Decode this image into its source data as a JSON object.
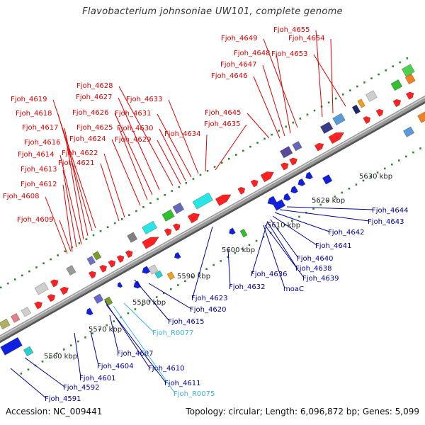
{
  "header": {
    "title": "Flavobacterium johnsoniae UW101, complete genome"
  },
  "footer": {
    "accession": "Accession: NC_009441",
    "summary": "Topology: circular; Length: 6,096,872 bp; Genes: 5,099"
  },
  "colors": {
    "plus_strand_label": "#e00000",
    "minus_strand_label": "#00009c",
    "rna_label": "#3cb4d8",
    "backbone": "#9a9a9a",
    "tick": "#2a8a2a"
  },
  "scale_ticks": [
    "5560 kbp",
    "5570 kbp",
    "5580 kbp",
    "5590 kbp",
    "5600 kbp",
    "5610 kbp",
    "5620 kbp",
    "5630 kbp"
  ],
  "upper_labels": [
    "Fjoh_4655",
    "Fjoh_4654",
    "Fjoh_4653",
    "Fjoh_4649",
    "Fjoh_4648",
    "Fjoh_4647",
    "Fjoh_4646",
    "Fjoh_4645",
    "Fjoh_4635",
    "Fjoh_4634",
    "Fjoh_4633",
    "Fjoh_4631",
    "Fjoh_4630",
    "Fjoh_4629",
    "Fjoh_4628",
    "Fjoh_4627",
    "Fjoh_4626",
    "Fjoh_4625",
    "Fjoh_4624",
    "Fjoh_4622",
    "Fjoh_4621",
    "Fjoh_4619",
    "Fjoh_4618",
    "Fjoh_4617",
    "Fjoh_4616",
    "Fjoh_4614",
    "Fjoh_4613",
    "Fjoh_4612",
    "Fjoh_4608",
    "Fjoh_4609"
  ],
  "lower_labels": [
    "Fjoh_4644",
    "Fjoh_4643",
    "Fjoh_4642",
    "Fjoh_4641",
    "Fjoh_4640",
    "Fjoh_4638",
    "Fjoh_4639",
    "Fjoh_4636",
    "moaC",
    "Fjoh_4632",
    "Fjoh_4623",
    "Fjoh_4620",
    "Fjoh_4615",
    "Fjoh_R0077",
    "Fjoh_4607",
    "Fjoh_4604",
    "Fjoh_4610",
    "Fjoh_4601",
    "Fjoh_4611",
    "Fjoh_4592",
    "Fjoh_R0075",
    "Fjoh_4591"
  ]
}
